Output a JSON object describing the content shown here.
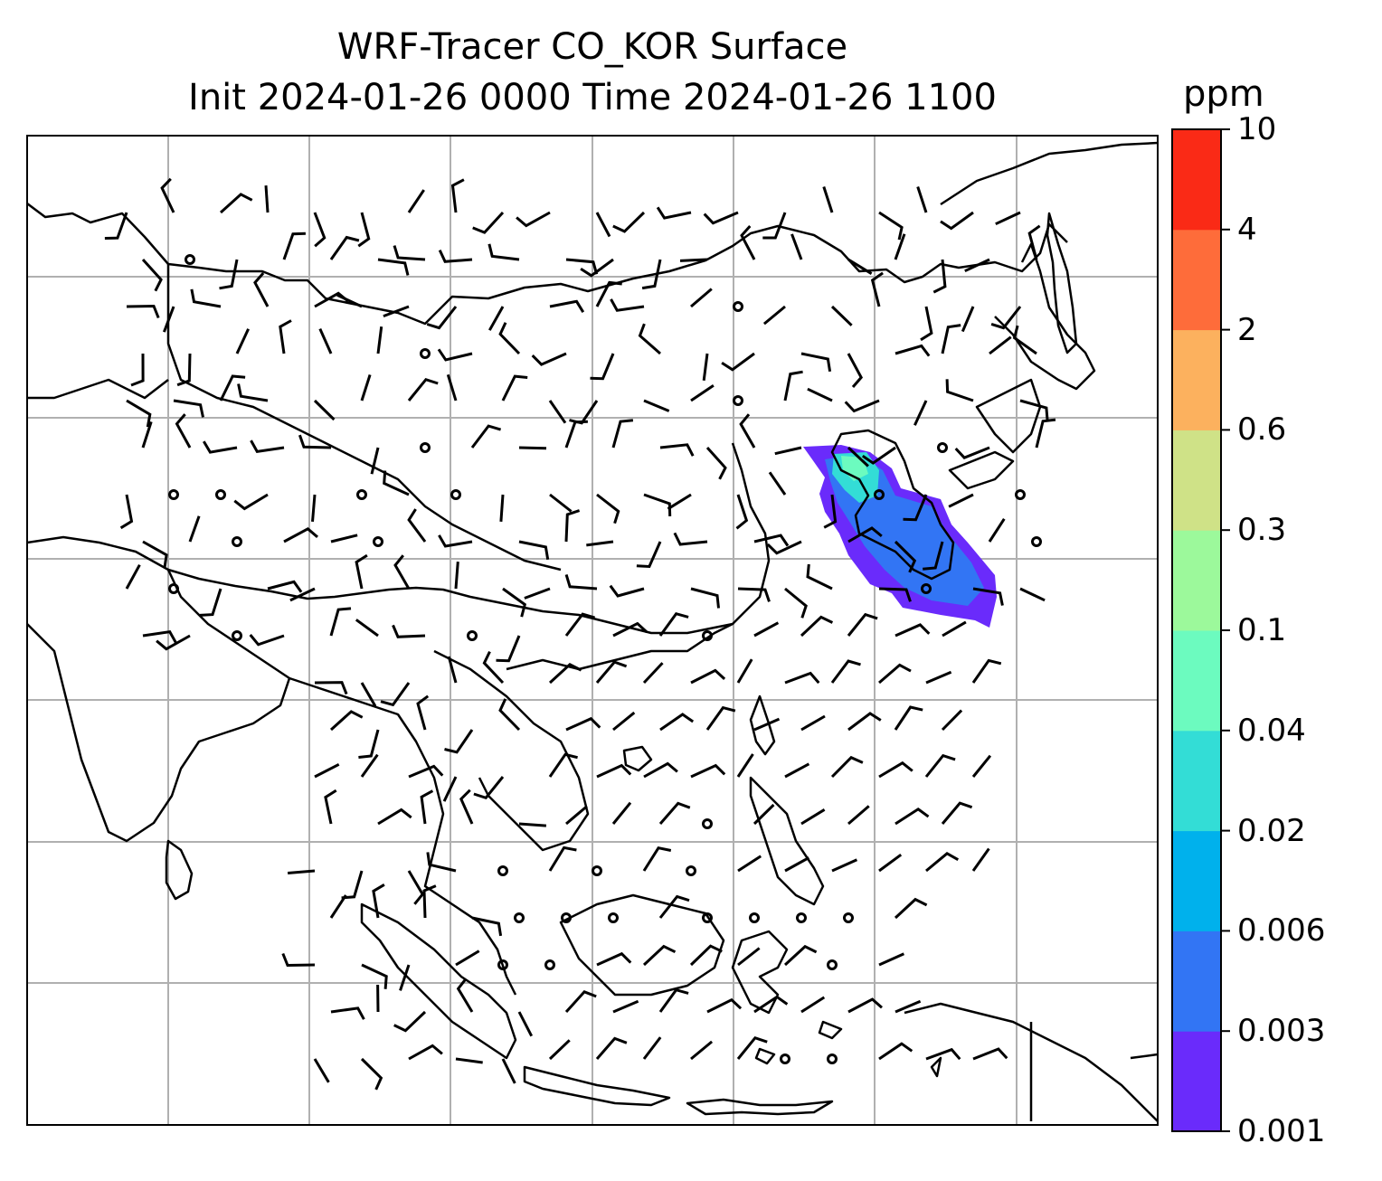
{
  "title": {
    "line1": "WRF-Tracer CO_KOR Surface",
    "line2": "Init 2024-01-26 0000 Time 2024-01-26 1100"
  },
  "colorbar": {
    "unit": "ppm",
    "ticks": [
      "0.001",
      "0.003",
      "0.006",
      "0.02",
      "0.04",
      "0.1",
      "0.3",
      "0.6",
      "2",
      "4",
      "10"
    ],
    "colors": [
      "#6a2bfb",
      "#3275f4",
      "#00b1ec",
      "#33ddd6",
      "#6cfbbf",
      "#9cf99b",
      "#cfe287",
      "#fcb15e",
      "#fe6c3a",
      "#fa2a16"
    ]
  },
  "map": {
    "plume_color_levels": [
      "#6a2bfb",
      "#3275f4",
      "#33ddd6",
      "#6cfbbf"
    ],
    "coastline_color": "#000000",
    "grid_color": "#b0b0b0"
  }
}
